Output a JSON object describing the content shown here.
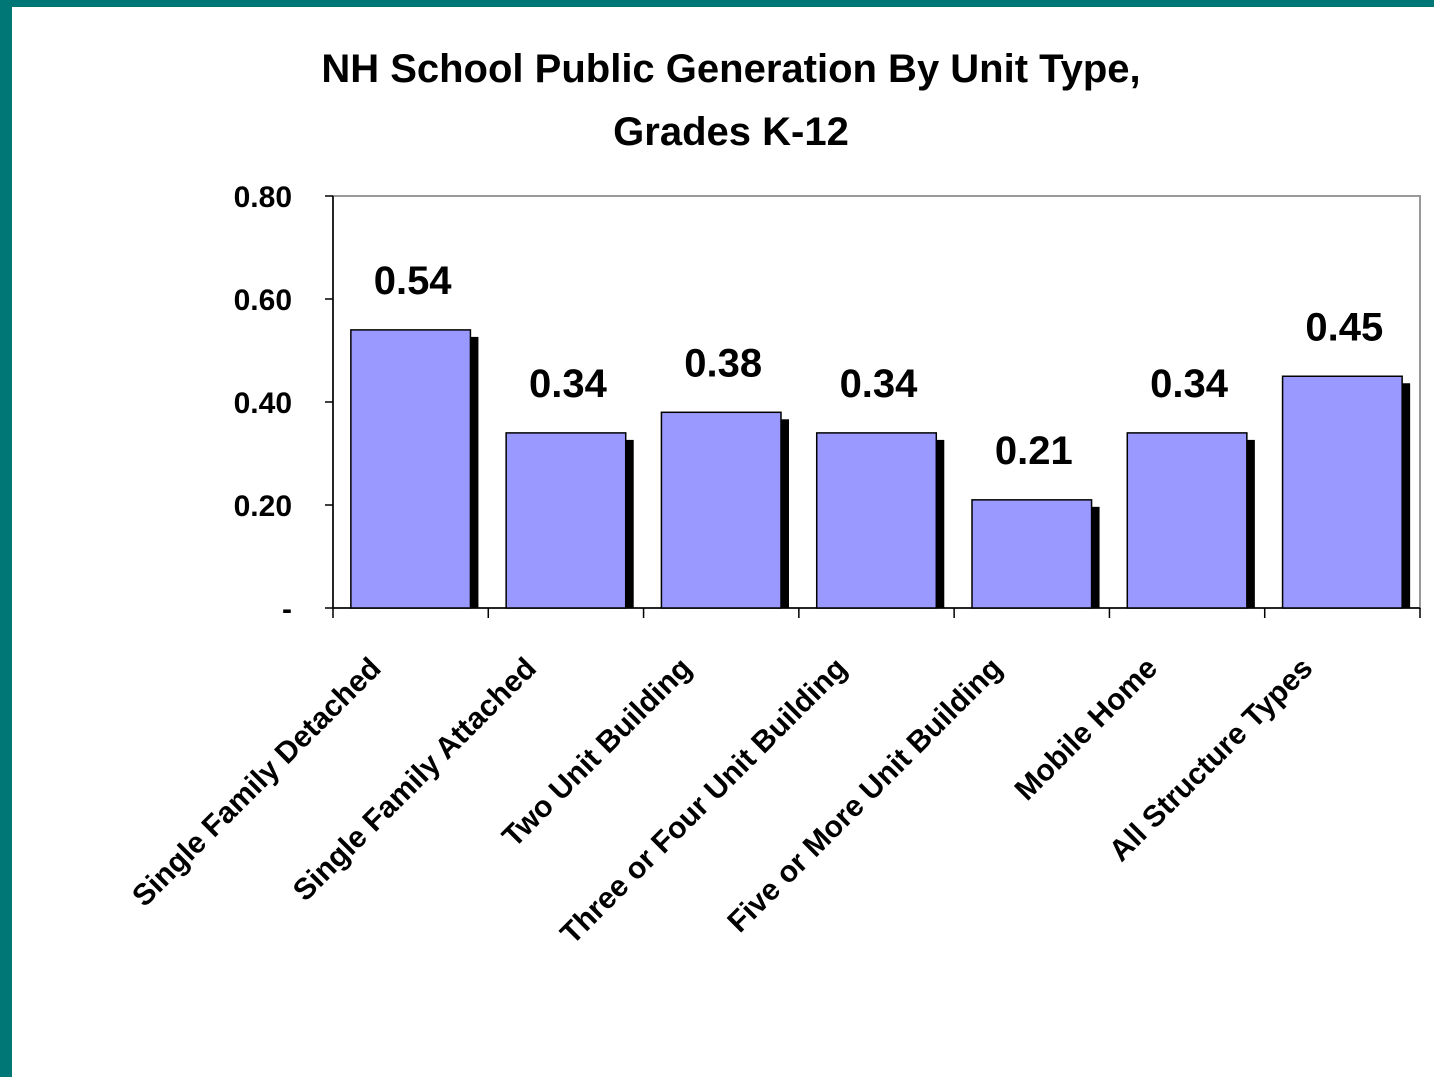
{
  "chart_data": {
    "type": "bar",
    "title": [
      "NH School Public Generation By Unit Type,",
      "Grades K-12"
    ],
    "categories": [
      "Single Family Detached",
      "Single Family Attached",
      "Two Unit Building",
      "Three or Four Unit Building",
      "Five or More Unit Building",
      "Mobile Home",
      "All Structure Types"
    ],
    "values": [
      0.54,
      0.34,
      0.38,
      0.34,
      0.21,
      0.34,
      0.45
    ],
    "color": "#9999ff",
    "ylim": [
      0,
      0.8
    ],
    "yticks": [
      {
        "value": 0,
        "label": "-"
      },
      {
        "value": 0.2,
        "label": "0.20"
      },
      {
        "value": 0.4,
        "label": "0.40"
      },
      {
        "value": 0.6,
        "label": "0.60"
      },
      {
        "value": 0.8,
        "label": "0.80"
      }
    ],
    "grid": false
  }
}
